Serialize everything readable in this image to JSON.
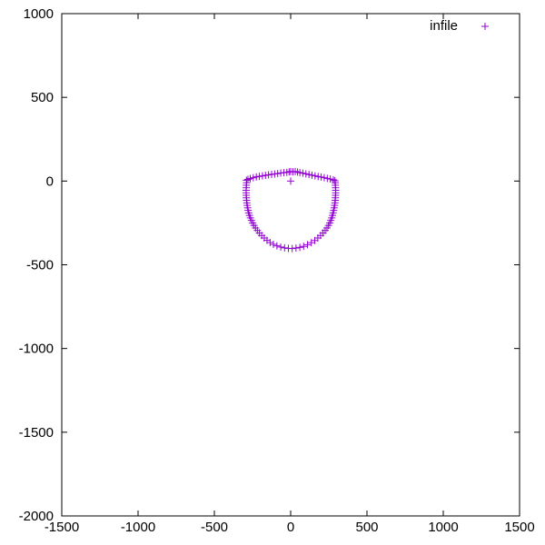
{
  "chart_data": {
    "type": "scatter",
    "title": "",
    "xlabel": "",
    "ylabel": "",
    "xlim": [
      -1500,
      1500
    ],
    "ylim": [
      -2000,
      1000
    ],
    "xticks": [
      -1500,
      -1000,
      -500,
      0,
      500,
      1000,
      1500
    ],
    "yticks": [
      -2000,
      -1500,
      -1000,
      -500,
      0,
      500,
      1000
    ],
    "xtick_labels": [
      "-1500",
      "-1000",
      "-500",
      "0",
      "500",
      "1000",
      "1500"
    ],
    "ytick_labels": [
      "-2000",
      "-1500",
      "-1000",
      "-500",
      "0",
      "500",
      "1000"
    ],
    "grid": false,
    "legend_position": "top-right",
    "marker": "+",
    "series": [
      {
        "name": "infile",
        "color": "#9400d3",
        "points": [
          [
            0,
            0
          ],
          [
            -290,
            5
          ],
          [
            -280,
            10
          ],
          [
            -265,
            15
          ],
          [
            -245,
            20
          ],
          [
            -225,
            25
          ],
          [
            -205,
            28
          ],
          [
            -185,
            31
          ],
          [
            -165,
            34
          ],
          [
            -145,
            37
          ],
          [
            -125,
            40
          ],
          [
            -105,
            42
          ],
          [
            -85,
            45
          ],
          [
            -65,
            48
          ],
          [
            -45,
            50
          ],
          [
            -25,
            52
          ],
          [
            -10,
            55
          ],
          [
            0,
            57
          ],
          [
            15,
            55
          ],
          [
            30,
            57
          ],
          [
            45,
            54
          ],
          [
            60,
            50
          ],
          [
            80,
            47
          ],
          [
            100,
            43
          ],
          [
            120,
            39
          ],
          [
            140,
            35
          ],
          [
            160,
            31
          ],
          [
            180,
            27
          ],
          [
            200,
            24
          ],
          [
            220,
            20
          ],
          [
            240,
            16
          ],
          [
            260,
            12
          ],
          [
            280,
            7
          ],
          [
            290,
            2
          ],
          [
            292,
            -10
          ],
          [
            293,
            -25
          ],
          [
            294,
            -40
          ],
          [
            295,
            -55
          ],
          [
            295,
            -70
          ],
          [
            294,
            -85
          ],
          [
            293,
            -100
          ],
          [
            292,
            -115
          ],
          [
            290,
            -130
          ],
          [
            288,
            -145
          ],
          [
            285,
            -160
          ],
          [
            282,
            -175
          ],
          [
            278,
            -190
          ],
          [
            274,
            -205
          ],
          [
            269,
            -220
          ],
          [
            263,
            -235
          ],
          [
            256,
            -250
          ],
          [
            248,
            -265
          ],
          [
            238,
            -280
          ],
          [
            226,
            -295
          ],
          [
            212,
            -310
          ],
          [
            196,
            -325
          ],
          [
            178,
            -340
          ],
          [
            158,
            -355
          ],
          [
            135,
            -368
          ],
          [
            110,
            -380
          ],
          [
            85,
            -390
          ],
          [
            60,
            -396
          ],
          [
            35,
            -400
          ],
          [
            10,
            -403
          ],
          [
            -15,
            -402
          ],
          [
            -40,
            -399
          ],
          [
            -65,
            -394
          ],
          [
            -90,
            -387
          ],
          [
            -113,
            -378
          ],
          [
            -135,
            -367
          ],
          [
            -155,
            -354
          ],
          [
            -173,
            -340
          ],
          [
            -190,
            -325
          ],
          [
            -205,
            -310
          ],
          [
            -218,
            -295
          ],
          [
            -230,
            -280
          ],
          [
            -240,
            -265
          ],
          [
            -249,
            -250
          ],
          [
            -257,
            -235
          ],
          [
            -264,
            -220
          ],
          [
            -270,
            -205
          ],
          [
            -275,
            -190
          ],
          [
            -279,
            -175
          ],
          [
            -282,
            -160
          ],
          [
            -285,
            -145
          ],
          [
            -287,
            -130
          ],
          [
            -289,
            -115
          ],
          [
            -290,
            -100
          ],
          [
            -291,
            -85
          ],
          [
            -292,
            -70
          ],
          [
            -292,
            -55
          ],
          [
            -291,
            -40
          ],
          [
            -290,
            -25
          ],
          [
            -289,
            -10
          ]
        ]
      }
    ]
  }
}
